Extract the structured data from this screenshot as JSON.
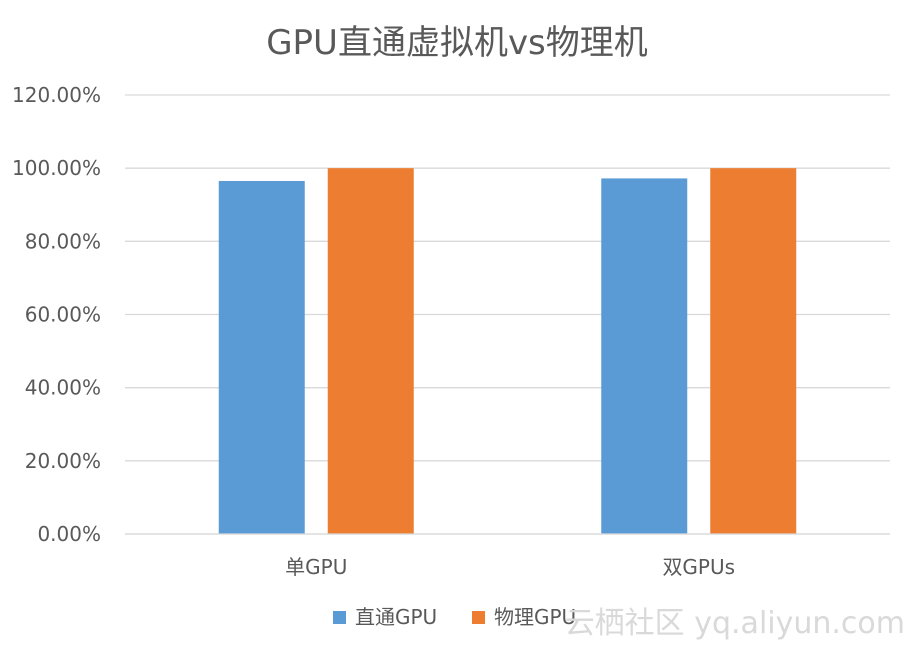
{
  "chart_data": {
    "type": "bar",
    "title": "GPU直通虚拟机vs物理机",
    "categories": [
      "单GPU",
      "双GPUs"
    ],
    "series": [
      {
        "name": "直通GPU",
        "color": "#5B9BD5",
        "values": [
          0.965,
          0.972
        ]
      },
      {
        "name": "物理GPU",
        "color": "#ED7D31",
        "values": [
          1.0,
          1.0
        ]
      }
    ],
    "y_ticks": [
      "0.00%",
      "20.00%",
      "40.00%",
      "60.00%",
      "80.00%",
      "100.00%",
      "120.00%"
    ],
    "ylim": [
      0,
      1.2
    ],
    "grid": true,
    "legend_position": "bottom",
    "gridline_color": "#D9D9D9"
  },
  "watermark": "云栖社区 yq.aliyun.com"
}
